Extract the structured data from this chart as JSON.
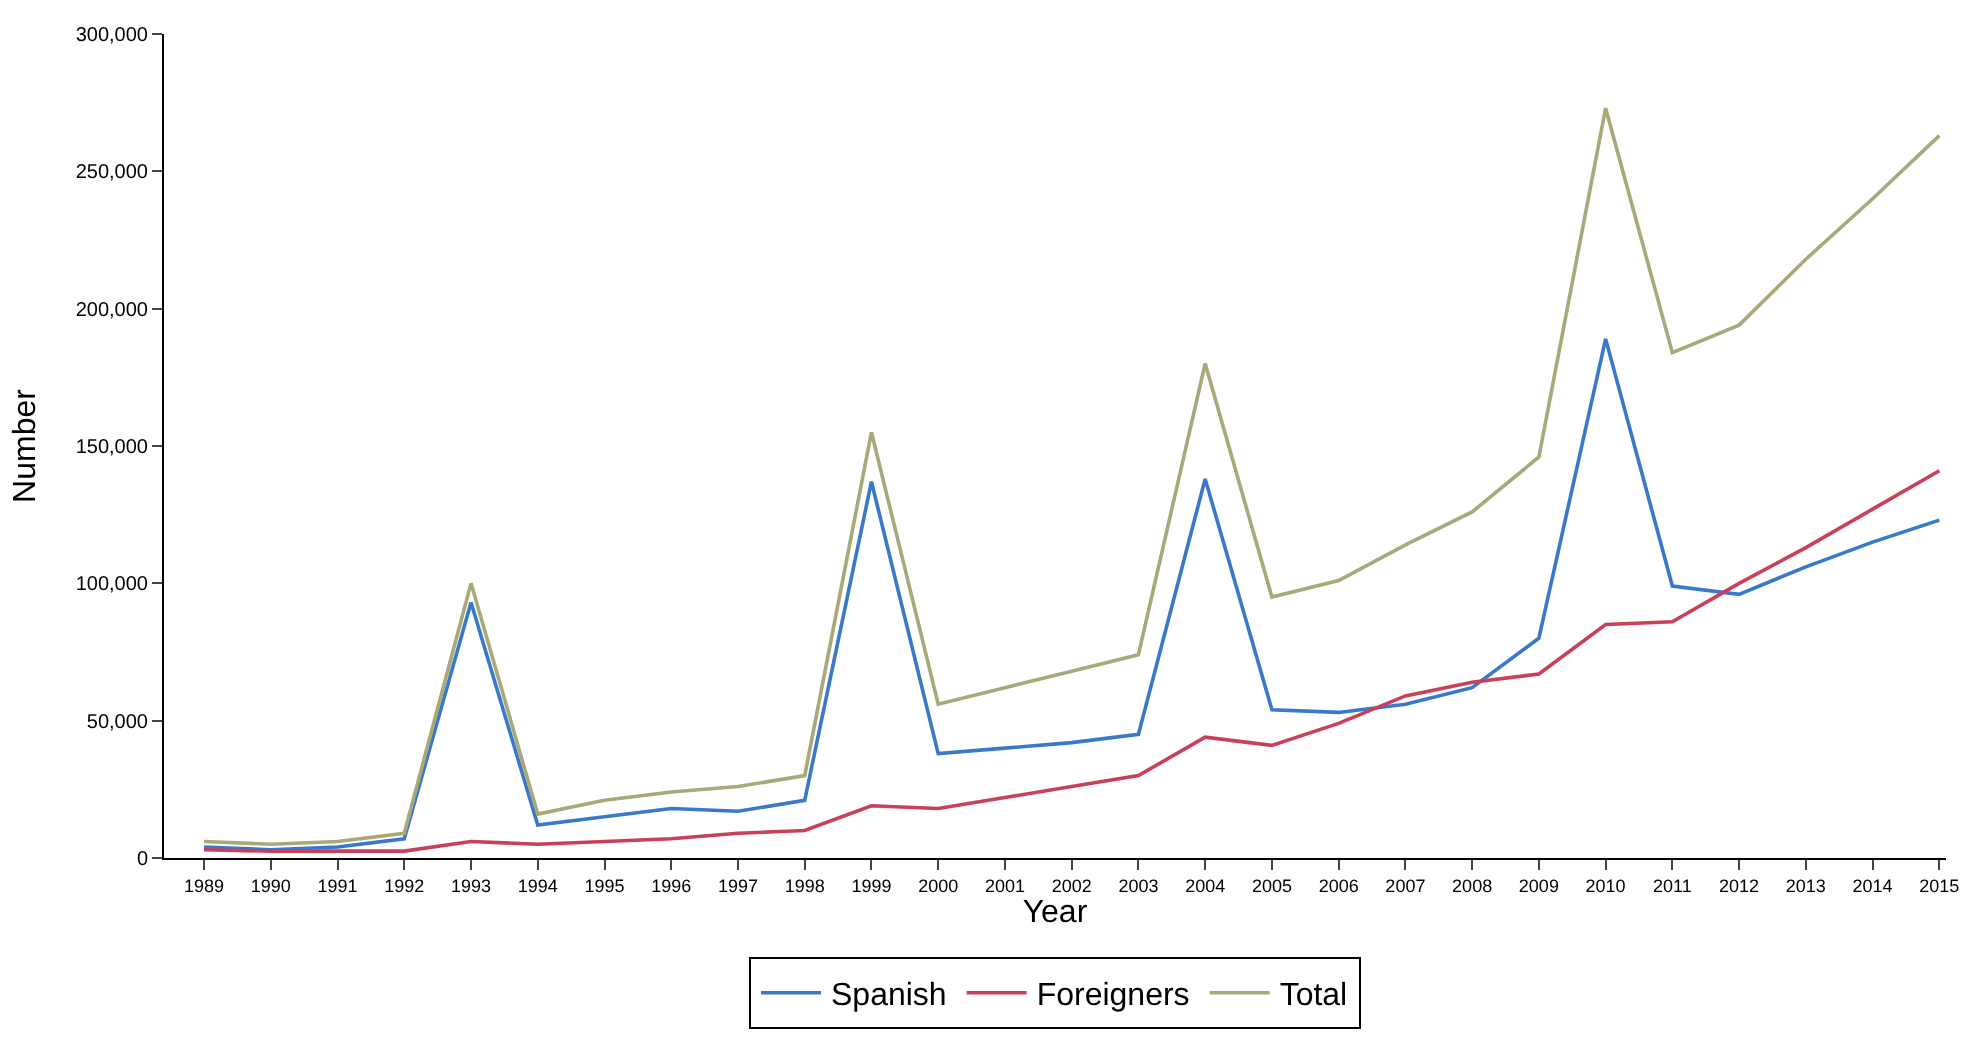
{
  "chart_data": {
    "type": "line",
    "xlabel": "Year",
    "ylabel": "Number",
    "categories": [
      "1989",
      "1990",
      "1991",
      "1992",
      "1993",
      "1994",
      "1995",
      "1996",
      "1997",
      "1998",
      "1999",
      "2000",
      "2001",
      "2002",
      "2003",
      "2004",
      "2005",
      "2006",
      "2007",
      "2008",
      "2009",
      "2010",
      "2011",
      "2012",
      "2013",
      "2014",
      "2015"
    ],
    "series": [
      {
        "name": "Spanish",
        "color": "#3a78c9",
        "values": [
          4000,
          3000,
          4000,
          7000,
          93000,
          12000,
          15000,
          18000,
          17000,
          21000,
          137000,
          38000,
          40000,
          42000,
          45000,
          138000,
          54000,
          53000,
          56000,
          62000,
          80000,
          189000,
          99000,
          96000,
          106000,
          115000,
          123000
        ]
      },
      {
        "name": "Foreigners",
        "color": "#c8405a",
        "values": [
          3000,
          2500,
          2500,
          2500,
          6000,
          5000,
          6000,
          7000,
          9000,
          10000,
          19000,
          18000,
          22000,
          26000,
          30000,
          44000,
          41000,
          49000,
          59000,
          64000,
          67000,
          85000,
          86000,
          100000,
          113000,
          127000,
          141000
        ]
      },
      {
        "name": "Total",
        "color": "#a8a878",
        "values": [
          6000,
          5000,
          6000,
          9000,
          100000,
          16000,
          21000,
          24000,
          26000,
          30000,
          155000,
          56000,
          62000,
          68000,
          74000,
          180000,
          95000,
          101000,
          114000,
          126000,
          146000,
          273000,
          184000,
          194000,
          218000,
          240000,
          263000
        ]
      }
    ],
    "ylim": [
      0,
      300000
    ],
    "yticks": [
      0,
      {
        "value": 50000,
        "label": "50,000"
      },
      {
        "value": 100000,
        "label": "100,000"
      },
      {
        "value": 150000,
        "label": "150,000"
      },
      {
        "value": 200000,
        "label": "200,000"
      },
      {
        "value": 250000,
        "label": "250,000"
      },
      {
        "value": 300000,
        "label": "300,000"
      }
    ],
    "legend": "bottom",
    "marker": "none",
    "line_style": "solid"
  }
}
